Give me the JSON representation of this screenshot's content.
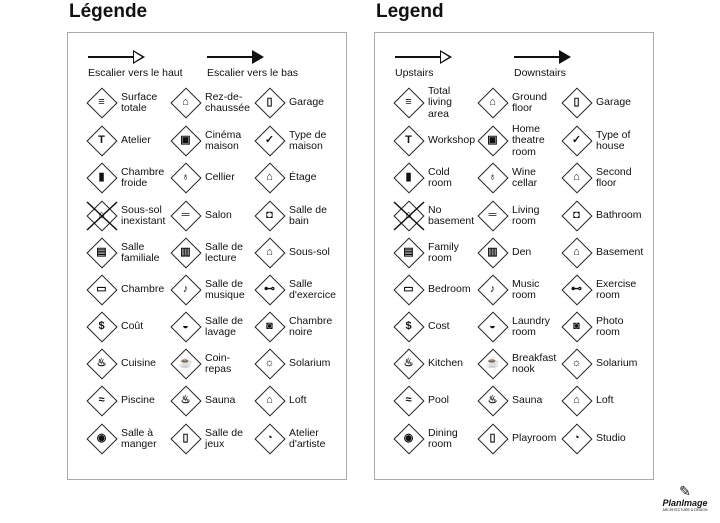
{
  "panels": [
    {
      "title": "Légende",
      "upstairs": "Escalier vers le haut",
      "downstairs": "Escalier vers le bas",
      "items": [
        [
          {
            "label": "Surface\ntotale",
            "icon": "total-area-icon"
          },
          {
            "label": "Rez-de-\nchaussée",
            "icon": "ground-floor-icon"
          },
          {
            "label": "Garage",
            "icon": "garage-icon"
          }
        ],
        [
          {
            "label": "Atelier",
            "icon": "hammer-icon"
          },
          {
            "label": "Cinéma\nmaison",
            "icon": "home-theatre-icon"
          },
          {
            "label": "Type de\nmaison",
            "icon": "house-type-icon"
          }
        ],
        [
          {
            "label": "Chambre\nfroide",
            "icon": "thermometer-icon"
          },
          {
            "label": "Cellier",
            "icon": "wine-icon"
          },
          {
            "label": "Étage",
            "icon": "second-floor-icon"
          }
        ],
        [
          {
            "label": "Sous-sol\ninexistant",
            "icon": "no-basement-icon"
          },
          {
            "label": "Salon",
            "icon": "sofa-icon"
          },
          {
            "label": "Salle de\nbain",
            "icon": "toilet-icon"
          }
        ],
        [
          {
            "label": "Salle\nfamiliale",
            "icon": "tv-icon"
          },
          {
            "label": "Salle de\nlecture",
            "icon": "book-icon"
          },
          {
            "label": "Sous-sol",
            "icon": "basement-icon"
          }
        ],
        [
          {
            "label": "Chambre",
            "icon": "bed-icon"
          },
          {
            "label": "Salle de\nmusique",
            "icon": "music-note-icon"
          },
          {
            "label": "Salle\nd'exercice",
            "icon": "dumbbell-icon"
          }
        ],
        [
          {
            "label": "Coût",
            "icon": "dollar-icon"
          },
          {
            "label": "Salle de\nlavage",
            "icon": "laundry-icon"
          },
          {
            "label": "Chambre\nnoire",
            "icon": "camera-icon"
          }
        ],
        [
          {
            "label": "Cuisine",
            "icon": "pot-icon"
          },
          {
            "label": "Coin-\nrepas",
            "icon": "coffee-icon"
          },
          {
            "label": "Solarium",
            "icon": "sun-icon"
          }
        ],
        [
          {
            "label": "Piscine",
            "icon": "pool-icon"
          },
          {
            "label": "Sauna",
            "icon": "sauna-icon"
          },
          {
            "label": "Loft",
            "icon": "loft-icon"
          }
        ],
        [
          {
            "label": "Salle à\nmanger",
            "icon": "plate-icon"
          },
          {
            "label": "Salle de\njeux",
            "icon": "joystick-icon"
          },
          {
            "label": "Atelier\nd'artiste",
            "icon": "palette-icon"
          }
        ]
      ]
    },
    {
      "title": "Legend",
      "upstairs": "Upstairs",
      "downstairs": "Downstairs",
      "items": [
        [
          {
            "label": "Total\nliving\narea",
            "icon": "total-area-icon"
          },
          {
            "label": "Ground\nfloor",
            "icon": "ground-floor-icon"
          },
          {
            "label": "Garage",
            "icon": "garage-icon"
          }
        ],
        [
          {
            "label": "Workshop",
            "icon": "hammer-icon"
          },
          {
            "label": "Home\ntheatre\nroom",
            "icon": "home-theatre-icon"
          },
          {
            "label": "Type of\nhouse",
            "icon": "house-type-icon"
          }
        ],
        [
          {
            "label": "Cold\nroom",
            "icon": "thermometer-icon"
          },
          {
            "label": "Wine\ncellar",
            "icon": "wine-icon"
          },
          {
            "label": "Second\nfloor",
            "icon": "second-floor-icon"
          }
        ],
        [
          {
            "label": "No\nbasement",
            "icon": "no-basement-icon"
          },
          {
            "label": "Living\nroom",
            "icon": "sofa-icon"
          },
          {
            "label": "Bathroom",
            "icon": "toilet-icon"
          }
        ],
        [
          {
            "label": "Family\nroom",
            "icon": "tv-icon"
          },
          {
            "label": "Den",
            "icon": "book-icon"
          },
          {
            "label": "Basement",
            "icon": "basement-icon"
          }
        ],
        [
          {
            "label": "Bedroom",
            "icon": "bed-icon"
          },
          {
            "label": "Music\nroom",
            "icon": "music-note-icon"
          },
          {
            "label": "Exercise\nroom",
            "icon": "dumbbell-icon"
          }
        ],
        [
          {
            "label": "Cost",
            "icon": "dollar-icon"
          },
          {
            "label": "Laundry\nroom",
            "icon": "laundry-icon"
          },
          {
            "label": "Photo\nroom",
            "icon": "camera-icon"
          }
        ],
        [
          {
            "label": "Kitchen",
            "icon": "pot-icon"
          },
          {
            "label": "Breakfast\nnook",
            "icon": "coffee-icon"
          },
          {
            "label": "Solarium",
            "icon": "sun-icon"
          }
        ],
        [
          {
            "label": "Pool",
            "icon": "pool-icon"
          },
          {
            "label": "Sauna",
            "icon": "sauna-icon"
          },
          {
            "label": "Loft",
            "icon": "loft-icon"
          }
        ],
        [
          {
            "label": "Dining\nroom",
            "icon": "plate-icon"
          },
          {
            "label": "Playroom",
            "icon": "joystick-icon"
          },
          {
            "label": "Studio",
            "icon": "palette-icon"
          }
        ]
      ]
    }
  ],
  "logo": {
    "text": "PlanImage",
    "subtitle": "ARCHITECTURE & DESIGN"
  }
}
